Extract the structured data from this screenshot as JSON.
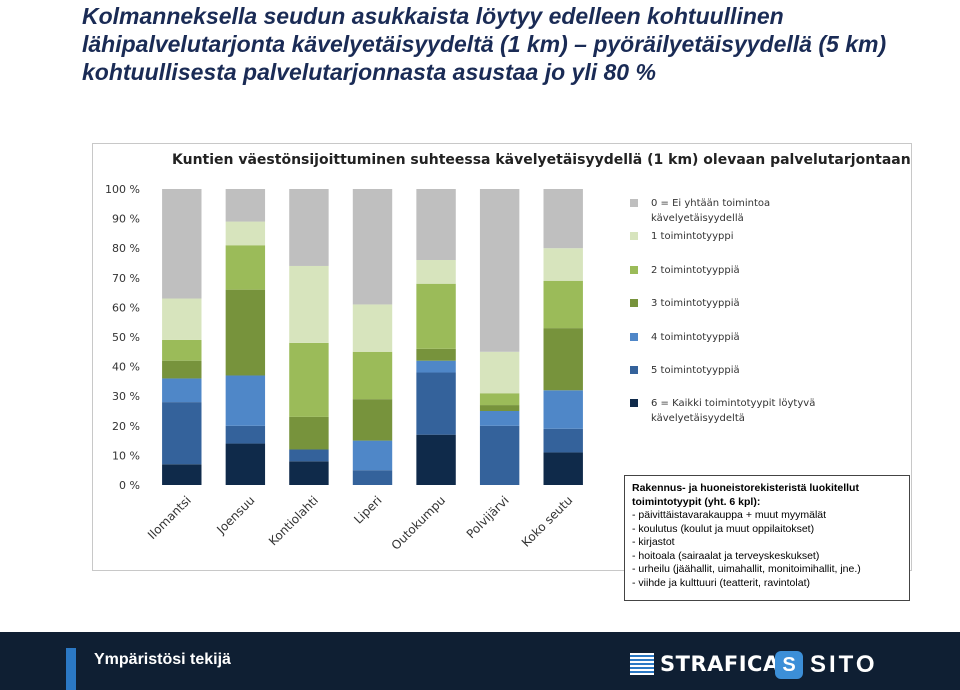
{
  "headline": "Kolmanneksella seudun asukkaista löytyy edelleen kohtuullinen lähipalvelutarjonta kävelyetäisyydeltä (1 km) – pyöräilyetäisyydellä (5 km) kohtuullisesta palvelutarjonnasta asustaa jo yli 80 %",
  "chart_data": {
    "type": "bar",
    "stacked": true,
    "title": "Kuntien väestönsijoittuminen suhteessa kävelyetäisyydellä (1 km) olevaan palvelutarjontaan",
    "xlabel": "",
    "ylabel": "",
    "ylim": [
      0,
      100
    ],
    "y_ticks": [
      "0 %",
      "10 %",
      "20 %",
      "30 %",
      "40 %",
      "50 %",
      "60 %",
      "70 %",
      "80 %",
      "90 %",
      "100 %"
    ],
    "categories": [
      "Ilomantsi",
      "Joensuu",
      "Kontiolahti",
      "Liperi",
      "Outokumpu",
      "Polvijärvi",
      "Koko seutu"
    ],
    "series": [
      {
        "name": "6 = Kaikki toimintotyypit löytyvä kävelyetäisyydeltä",
        "color": "#0f2a4a",
        "values": [
          7,
          14,
          8,
          0,
          17,
          0,
          11
        ]
      },
      {
        "name": "5 toimintotyyppiä",
        "color": "#34629b",
        "values": [
          21,
          6,
          4,
          5,
          21,
          20,
          8
        ]
      },
      {
        "name": "4 toimintotyyppiä",
        "color": "#4f87c8",
        "values": [
          8,
          17,
          0,
          10,
          4,
          5,
          13
        ]
      },
      {
        "name": "3 toimintotyyppiä",
        "color": "#77933c",
        "values": [
          6,
          29,
          11,
          14,
          4,
          2,
          21
        ]
      },
      {
        "name": "2 toimintotyyppiä",
        "color": "#9bbb59",
        "values": [
          7,
          15,
          25,
          16,
          22,
          4,
          16
        ]
      },
      {
        "name": "1 toimintotyyppi",
        "color": "#d7e4bd",
        "values": [
          14,
          8,
          26,
          16,
          8,
          14,
          11
        ]
      },
      {
        "name": "0 = Ei yhtään toimintoa kävelyetäisyydellä",
        "color": "#bfbfbf",
        "values": [
          37,
          11,
          26,
          39,
          24,
          55,
          20
        ]
      }
    ],
    "legend_order": [
      6,
      5,
      4,
      3,
      2,
      1,
      0
    ],
    "legend_position": "right"
  },
  "note": {
    "title": "Rakennus- ja huoneistorekisteristä luokitellut toimintotyypit (yht. 6 kpl):",
    "items": [
      "- päivittäistavarakauppa + muut myymälät",
      "- koulutus (koulut ja muut oppilaitokset)",
      "- kirjastot",
      "- hoitoala (sairaalat ja terveyskeskukset)",
      "- urheilu (jäähallit, uimahallit, monitoimihallit, jne.)",
      "- viihde ja kulttuuri (teatterit, ravintolat)"
    ]
  },
  "footer": {
    "title": "Ympäristösi tekijä",
    "logo_strafica": "STRAFICA",
    "logo_sito": "SITO",
    "logo_sito_mark": "S"
  }
}
